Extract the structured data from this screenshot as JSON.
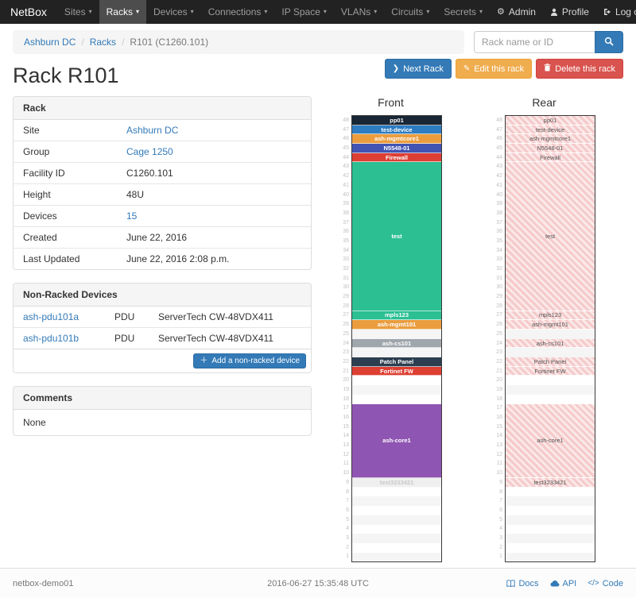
{
  "navbar": {
    "brand": "NetBox",
    "items": [
      {
        "label": "Sites",
        "active": false
      },
      {
        "label": "Racks",
        "active": true
      },
      {
        "label": "Devices",
        "active": false
      },
      {
        "label": "Connections",
        "active": false
      },
      {
        "label": "IP Space",
        "active": false
      },
      {
        "label": "VLANs",
        "active": false
      },
      {
        "label": "Circuits",
        "active": false
      },
      {
        "label": "Secrets",
        "active": false
      }
    ],
    "right": [
      {
        "label": "Admin",
        "icon": "gear-icon"
      },
      {
        "label": "Profile",
        "icon": "person-icon"
      },
      {
        "label": "Log out",
        "icon": "logout-icon"
      }
    ]
  },
  "breadcrumb": {
    "items": [
      "Ashburn DC",
      "Racks",
      "R101 (C1260.101)"
    ]
  },
  "search": {
    "placeholder": "Rack name or ID"
  },
  "actions": {
    "next_label": "Next Rack",
    "edit_label": "Edit this rack",
    "delete_label": "Delete this rack"
  },
  "page_title": "Rack R101",
  "rack_panel": {
    "title": "Rack",
    "rows": [
      {
        "label": "Site",
        "value": "Ashburn DC",
        "link": true
      },
      {
        "label": "Group",
        "value": "Cage 1250",
        "link": true
      },
      {
        "label": "Facility ID",
        "value": "C1260.101",
        "link": false
      },
      {
        "label": "Height",
        "value": "48U",
        "link": false
      },
      {
        "label": "Devices",
        "value": "15",
        "link": true
      },
      {
        "label": "Created",
        "value": "June 22, 2016",
        "link": false
      },
      {
        "label": "Last Updated",
        "value": "June 22, 2016 2:08 p.m.",
        "link": false
      }
    ]
  },
  "nonracked_panel": {
    "title": "Non-Racked Devices",
    "rows": [
      {
        "name": "ash-pdu101a",
        "role": "PDU",
        "model": "ServerTech CW-48VDX411"
      },
      {
        "name": "ash-pdu101b",
        "role": "PDU",
        "model": "ServerTech CW-48VDX411"
      }
    ],
    "add_button": "Add a non-racked device"
  },
  "comments_panel": {
    "title": "Comments",
    "body": "None"
  },
  "elevations": {
    "front_title": "Front",
    "rear_title": "Rear",
    "units_total": 48,
    "devices": [
      {
        "name": "pp01",
        "top_u": 48,
        "height": 1,
        "color": "#182635",
        "light": false
      },
      {
        "name": "test-device",
        "top_u": 47,
        "height": 1,
        "color": "#2d7cc1",
        "light": false
      },
      {
        "name": "ash-mgmtcore1",
        "top_u": 46,
        "height": 1,
        "color": "#eb9d3e",
        "light": false
      },
      {
        "name": "N5548-01",
        "top_u": 45,
        "height": 1,
        "color": "#4154b3",
        "light": false
      },
      {
        "name": "Firewall",
        "top_u": 44,
        "height": 1,
        "color": "#dd3f33",
        "light": false
      },
      {
        "name": "test",
        "top_u": 43,
        "height": 16,
        "color": "#2bbf92",
        "light": false
      },
      {
        "name": "mpls123",
        "top_u": 27,
        "height": 1,
        "color": "#2bbf92",
        "light": false
      },
      {
        "name": "ash-mgmt101",
        "top_u": 26,
        "height": 1,
        "color": "#eb9d3e",
        "light": false
      },
      {
        "name": "ash-cs101",
        "top_u": 24,
        "height": 1,
        "color": "#9fa6ac",
        "light": false
      },
      {
        "name": "Patch Panel",
        "top_u": 22,
        "height": 1,
        "color": "#2c3e50",
        "light": false
      },
      {
        "name": "Fortinet FW",
        "top_u": 21,
        "height": 1,
        "color": "#dd3f33",
        "light": false
      },
      {
        "name": "ash-core1",
        "top_u": 17,
        "height": 8,
        "color": "#8f55b2",
        "light": false
      },
      {
        "name": "test3233421",
        "top_u": 9,
        "height": 1,
        "color": "#efefef",
        "light": true
      }
    ]
  },
  "footer": {
    "hostname": "netbox-demo01",
    "timestamp": "2016-06-27 15:35:48 UTC",
    "links": [
      {
        "label": "Docs",
        "icon": "book-icon"
      },
      {
        "label": "API",
        "icon": "cloud-icon"
      },
      {
        "label": "Code",
        "icon": "code-icon"
      }
    ]
  },
  "colors": {
    "accent": "#337ab7",
    "warning": "#f0ad4e",
    "danger": "#d9534f",
    "navbar": "#222222"
  }
}
